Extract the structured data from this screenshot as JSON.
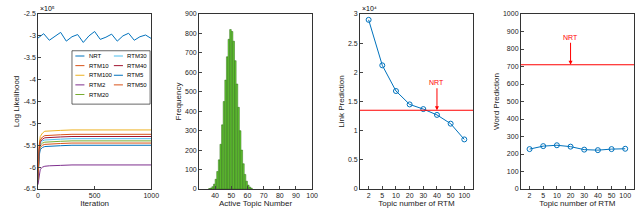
{
  "chart_data": [
    {
      "type": "line",
      "x_label": "Iteration",
      "y_label": "Log Likelihood",
      "annotations": [
        "×10⁵"
      ],
      "xlim": [
        0,
        1000
      ],
      "xticks": [
        0,
        500,
        1000
      ],
      "ylim": [
        -6.5,
        -2.5
      ],
      "yticks": [
        -6.5,
        -6,
        -5.5,
        -5,
        -4.5,
        -4,
        -3.5,
        -3,
        -2.5
      ],
      "legend": "upper right",
      "series": [
        {
          "name": "NRT",
          "color": "#0072BD",
          "x": [
            0,
            50,
            100,
            150,
            200,
            250,
            300,
            350,
            400,
            450,
            500,
            550,
            600,
            650,
            700,
            750,
            800,
            850,
            900,
            950,
            1000
          ],
          "values": [
            -3.05,
            -2.95,
            -3.1,
            -3.0,
            -2.92,
            -3.12,
            -3.02,
            -2.97,
            -3.15,
            -3.0,
            -2.9,
            -3.08,
            -3.03,
            -2.96,
            -3.12,
            -3.0,
            -2.94,
            -3.1,
            -3.02,
            -2.98,
            -3.06
          ]
        },
        {
          "name": "RTM10",
          "color": "#D95319",
          "x": [
            0,
            10,
            20,
            40,
            60,
            100,
            150,
            200,
            300,
            400,
            500,
            600,
            700,
            800,
            900,
            1000
          ],
          "values": [
            -6.3,
            -5.7,
            -5.55,
            -5.5,
            -5.48,
            -5.47,
            -5.46,
            -5.46,
            -5.45,
            -5.45,
            -5.45,
            -5.46,
            -5.45,
            -5.45,
            -5.45,
            -5.45
          ]
        },
        {
          "name": "RTM100",
          "color": "#EDB120",
          "x": [
            0,
            10,
            20,
            40,
            60,
            100,
            150,
            200,
            300,
            400,
            500,
            600,
            700,
            800,
            900,
            1000
          ],
          "values": [
            -6.35,
            -5.5,
            -5.3,
            -5.22,
            -5.18,
            -5.17,
            -5.16,
            -5.16,
            -5.15,
            -5.15,
            -5.16,
            -5.15,
            -5.15,
            -5.15,
            -5.15,
            -5.15
          ]
        },
        {
          "name": "RTM2",
          "color": "#7E2F8E",
          "x": [
            0,
            10,
            20,
            40,
            60,
            100,
            150,
            200,
            300,
            400,
            500,
            600,
            700,
            800,
            900,
            1000
          ],
          "values": [
            -6.4,
            -6.15,
            -6.05,
            -6.0,
            -5.98,
            -5.97,
            -5.96,
            -5.96,
            -5.95,
            -5.95,
            -5.96,
            -5.95,
            -5.95,
            -5.96,
            -5.95,
            -5.95
          ]
        },
        {
          "name": "RTM20",
          "color": "#77AC30",
          "x": [
            0,
            10,
            20,
            40,
            60,
            100,
            150,
            200,
            300,
            400,
            500,
            600,
            700,
            800,
            900,
            1000
          ],
          "values": [
            -6.3,
            -5.65,
            -5.5,
            -5.45,
            -5.43,
            -5.42,
            -5.41,
            -5.41,
            -5.4,
            -5.4,
            -5.41,
            -5.4,
            -5.4,
            -5.4,
            -5.4,
            -5.4
          ]
        },
        {
          "name": "RTM30",
          "color": "#4DBEEE",
          "x": [
            0,
            10,
            20,
            40,
            60,
            100,
            150,
            200,
            300,
            400,
            500,
            600,
            700,
            800,
            900,
            1000
          ],
          "values": [
            -6.3,
            -5.62,
            -5.45,
            -5.4,
            -5.38,
            -5.37,
            -5.36,
            -5.36,
            -5.35,
            -5.35,
            -5.36,
            -5.35,
            -5.35,
            -5.35,
            -5.35,
            -5.35
          ]
        },
        {
          "name": "RTM40",
          "color": "#A2142F",
          "x": [
            0,
            10,
            20,
            40,
            60,
            100,
            150,
            200,
            300,
            400,
            500,
            600,
            700,
            800,
            900,
            1000
          ],
          "values": [
            -6.3,
            -5.6,
            -5.42,
            -5.36,
            -5.33,
            -5.32,
            -5.31,
            -5.31,
            -5.3,
            -5.3,
            -5.31,
            -5.3,
            -5.3,
            -5.3,
            -5.3,
            -5.3
          ]
        },
        {
          "name": "RTM5",
          "color": "#0072BD",
          "x": [
            0,
            10,
            20,
            40,
            60,
            100,
            150,
            200,
            300,
            400,
            500,
            600,
            700,
            800,
            900,
            1000
          ],
          "values": [
            -6.3,
            -5.75,
            -5.6,
            -5.55,
            -5.53,
            -5.52,
            -5.51,
            -5.51,
            -5.5,
            -5.5,
            -5.51,
            -5.5,
            -5.5,
            -5.5,
            -5.51,
            -5.5
          ]
        },
        {
          "name": "RTM50",
          "color": "#D95319",
          "x": [
            0,
            10,
            20,
            40,
            60,
            100,
            150,
            200,
            300,
            400,
            500,
            600,
            700,
            800,
            900,
            1000
          ],
          "values": [
            -6.3,
            -5.55,
            -5.38,
            -5.31,
            -5.28,
            -5.27,
            -5.26,
            -5.26,
            -5.25,
            -5.25,
            -5.26,
            -5.25,
            -5.25,
            -5.25,
            -5.25,
            -5.25
          ]
        }
      ]
    },
    {
      "type": "histogram",
      "x_label": "Active Topic Number",
      "y_label": "Frequency",
      "color": "#66CC33",
      "bins": [
        36,
        37,
        38,
        39,
        40,
        41,
        42,
        43,
        44,
        45,
        46,
        47,
        48,
        49,
        50,
        51,
        52,
        53,
        54,
        55,
        56,
        57,
        58,
        59,
        60,
        61,
        62,
        63
      ],
      "values": [
        2,
        5,
        12,
        25,
        50,
        90,
        150,
        230,
        330,
        450,
        560,
        680,
        770,
        820,
        810,
        760,
        660,
        540,
        420,
        300,
        200,
        130,
        75,
        40,
        20,
        10,
        4
      ],
      "xlim": [
        30,
        100
      ],
      "xticks": [
        40,
        50,
        60,
        70,
        80,
        90,
        100
      ],
      "ylim": [
        0,
        900
      ],
      "yticks": [
        0,
        100,
        200,
        300,
        400,
        500,
        600,
        700,
        800,
        900
      ]
    },
    {
      "type": "line",
      "x_label": "Topic number of RTM",
      "y_label": "Link Prediction",
      "annotations": [
        "×10⁴"
      ],
      "categories": [
        2,
        5,
        10,
        20,
        30,
        40,
        50,
        100
      ],
      "values": [
        2.9,
        2.12,
        1.68,
        1.45,
        1.37,
        1.27,
        1.12,
        0.85
      ],
      "color": "#0072BD",
      "marker": "open circle",
      "ylim": [
        0,
        3
      ],
      "yticks": [
        0,
        0.5,
        1,
        1.5,
        2,
        2.5,
        3
      ],
      "reference_line": {
        "label": "NRT",
        "value": 1.35,
        "color": "#FF0000"
      }
    },
    {
      "type": "line",
      "x_label": "Topic number of RTM",
      "y_label": "Word Prediction",
      "categories": [
        2,
        5,
        10,
        20,
        30,
        40,
        50,
        100
      ],
      "values": [
        228,
        245,
        250,
        242,
        225,
        222,
        228,
        230
      ],
      "color": "#0072BD",
      "marker": "open circle",
      "ylim": [
        0,
        1000
      ],
      "yticks": [
        0,
        100,
        200,
        300,
        400,
        500,
        600,
        700,
        800,
        900,
        1000
      ],
      "reference_line": {
        "label": "NRT",
        "value": 710,
        "color": "#FF0000"
      }
    }
  ]
}
